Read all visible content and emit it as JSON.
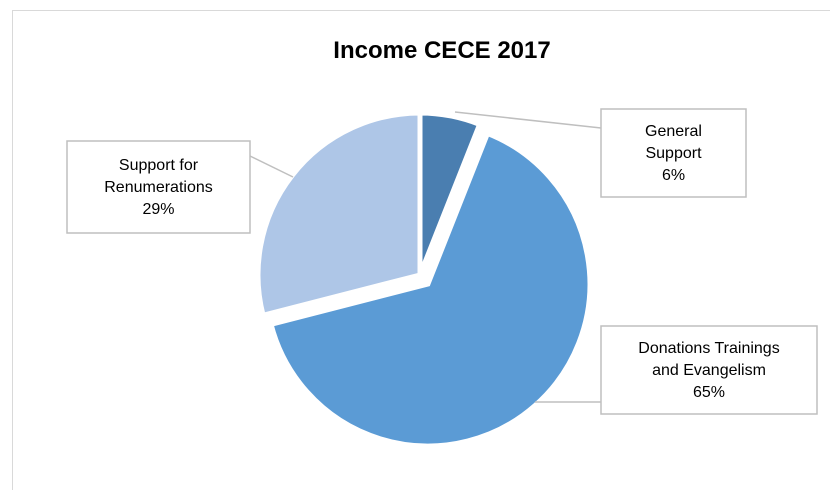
{
  "chart_data": {
    "type": "pie",
    "title": "Income CECE 2017",
    "slices": [
      {
        "name": "General Support",
        "value": 6,
        "value_label": "6%",
        "label_lines": [
          "General",
          "Support"
        ],
        "color": "#4a7eb0",
        "exploded": false
      },
      {
        "name": "Donations Trainings and Evangelism",
        "value": 65,
        "value_label": "65%",
        "label_lines": [
          "Donations Trainings",
          "and Evangelism"
        ],
        "color": "#5b9bd5",
        "exploded": true
      },
      {
        "name": "Support for Renumerations",
        "value": 29,
        "value_label": "29%",
        "label_lines": [
          "Support for",
          "Renumerations"
        ],
        "color": "#aec6e7",
        "exploded": false
      }
    ],
    "start_angle": "top, clockwise",
    "legend": "none (callout labels)",
    "colors": {
      "border": "#d9d9d9",
      "leader_line": "#bfbfbf",
      "callout_border": "#bfbfbf"
    }
  }
}
